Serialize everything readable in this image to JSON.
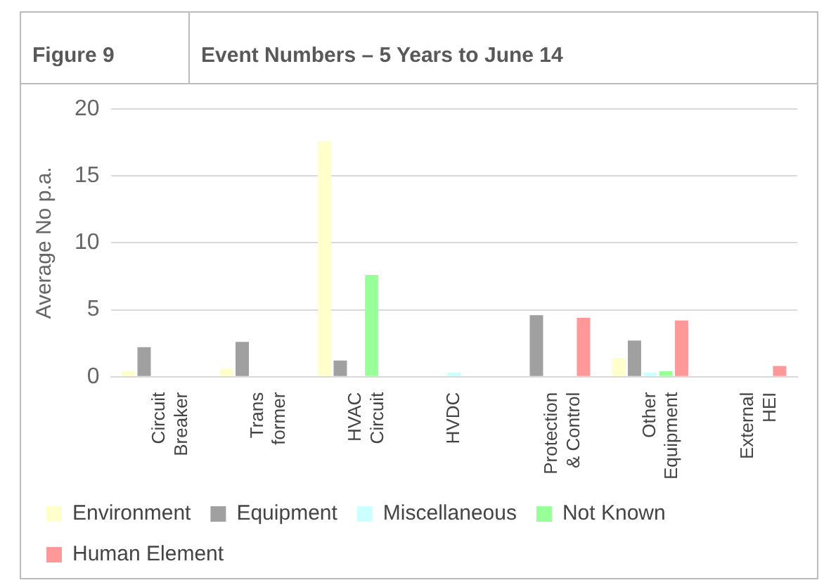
{
  "chart_data": {
    "type": "bar",
    "title": "Event Numbers – 5 Years to June 14",
    "subtitle": "Figure 9",
    "ylabel": "Average No p.a.",
    "categories": [
      "Circuit Breaker",
      "Trans former",
      "HVAC Circuit",
      "HVDC",
      "Protection & Control",
      "Other Equipment",
      "External HEI"
    ],
    "series": [
      {
        "name": "Environment",
        "color": "#ffffcc",
        "values": [
          0.4,
          0.6,
          17.6,
          null,
          null,
          1.4,
          null
        ]
      },
      {
        "name": "Equipment",
        "color": "#a0a0a0",
        "values": [
          2.2,
          2.6,
          1.2,
          null,
          4.6,
          2.7,
          null
        ]
      },
      {
        "name": "Miscellaneous",
        "color": "#ccffff",
        "values": [
          null,
          null,
          null,
          0.3,
          null,
          0.3,
          null
        ]
      },
      {
        "name": "Not Known",
        "color": "#99ff99",
        "values": [
          null,
          null,
          7.6,
          null,
          null,
          0.4,
          null
        ]
      },
      {
        "name": "Human Element",
        "color": "#ff9999",
        "values": [
          null,
          null,
          null,
          null,
          4.4,
          4.2,
          0.8
        ]
      }
    ],
    "ylim": [
      0,
      20
    ],
    "yticks": [
      0,
      5,
      10,
      15,
      20
    ],
    "grid": "y",
    "legend": "bottom"
  }
}
